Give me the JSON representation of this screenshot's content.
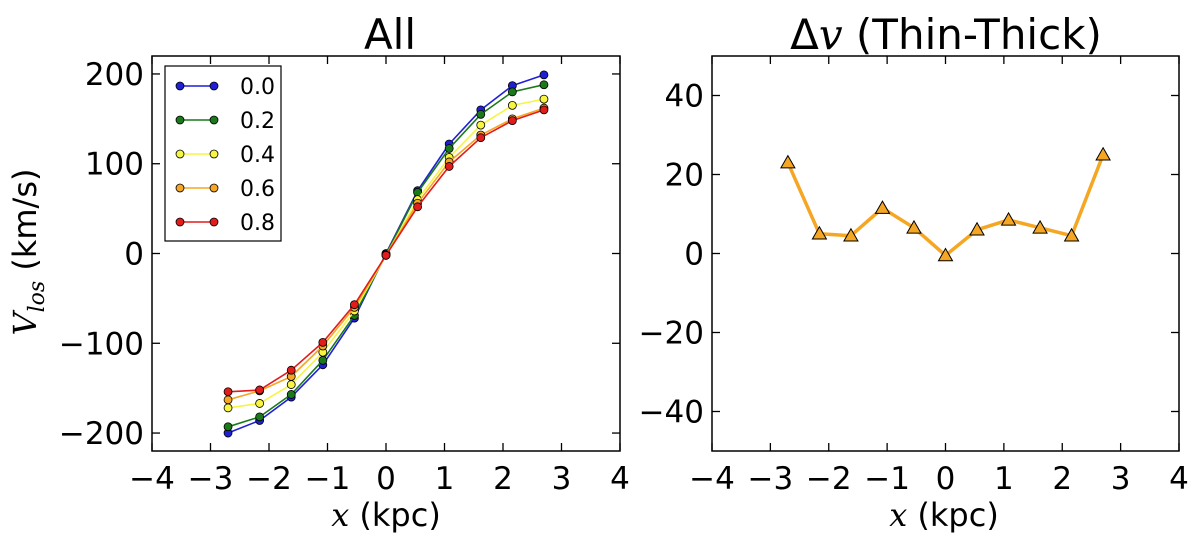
{
  "chart_data": [
    {
      "type": "line",
      "title": "All",
      "xlabel_var": "x",
      "xlabel_unit": " (kpc)",
      "ylabel_var": "V",
      "ylabel_sub": "los",
      "ylabel_unit": " (km/s)",
      "xlim": [
        -4,
        4
      ],
      "ylim": [
        -220,
        220
      ],
      "xticks": [
        -4,
        -3,
        -2,
        -1,
        0,
        1,
        2,
        3,
        4
      ],
      "yticks": [
        -200,
        -100,
        0,
        100,
        200
      ],
      "xtick_labels": [
        "−4",
        "−3",
        "−2",
        "−1",
        "0",
        "1",
        "2",
        "3",
        "4"
      ],
      "ytick_labels": [
        "−200",
        "−100",
        "0",
        "100",
        "200"
      ],
      "legend_position": "top-left",
      "x": [
        -2.7,
        -2.16,
        -1.62,
        -1.08,
        -0.54,
        0.0,
        0.54,
        1.08,
        1.62,
        2.16,
        2.7
      ],
      "series": [
        {
          "name": "0.0",
          "color": "#1f1fd6",
          "values": [
            -200,
            -186,
            -160,
            -124,
            -72,
            0,
            70,
            122,
            160,
            187,
            199
          ]
        },
        {
          "name": "0.2",
          "color": "#1a7a1a",
          "values": [
            -193,
            -182,
            -157,
            -119,
            -69,
            -1,
            68,
            117,
            155,
            180,
            188
          ]
        },
        {
          "name": "0.4",
          "color": "#f5f542",
          "values": [
            -172,
            -167,
            -146,
            -110,
            -64,
            -2,
            60,
            107,
            143,
            165,
            172
          ]
        },
        {
          "name": "0.6",
          "color": "#f5a623",
          "values": [
            -163,
            -153,
            -137,
            -103,
            -60,
            -2,
            56,
            102,
            132,
            150,
            162
          ]
        },
        {
          "name": "0.8",
          "color": "#e21b1b",
          "values": [
            -154,
            -152,
            -130,
            -99,
            -57,
            -2,
            52,
            97,
            129,
            148,
            160
          ]
        }
      ]
    },
    {
      "type": "line",
      "title_delta": "Δ",
      "title_var": "v",
      "title_rest": " (Thin-Thick)",
      "xlabel_var": "x",
      "xlabel_unit": " (kpc)",
      "xlim": [
        -4,
        4
      ],
      "ylim": [
        -50,
        50
      ],
      "xticks": [
        -4,
        -3,
        -2,
        -1,
        0,
        1,
        2,
        3,
        4
      ],
      "yticks": [
        -40,
        -20,
        0,
        20,
        40
      ],
      "xtick_labels": [
        "−4",
        "−3",
        "−2",
        "−1",
        "0",
        "1",
        "2",
        "3",
        "4"
      ],
      "ytick_labels": [
        "−40",
        "−20",
        "0",
        "20",
        "40"
      ],
      "x": [
        -2.7,
        -2.16,
        -1.62,
        -1.08,
        -0.54,
        0.0,
        0.54,
        1.08,
        1.62,
        2.16,
        2.7
      ],
      "series": [
        {
          "name": "Thin-Thick",
          "color": "#f5a623",
          "values": [
            23,
            5,
            4.5,
            11.5,
            6.5,
            -0.5,
            6,
            8.5,
            6.5,
            4.5,
            25
          ]
        }
      ]
    }
  ]
}
